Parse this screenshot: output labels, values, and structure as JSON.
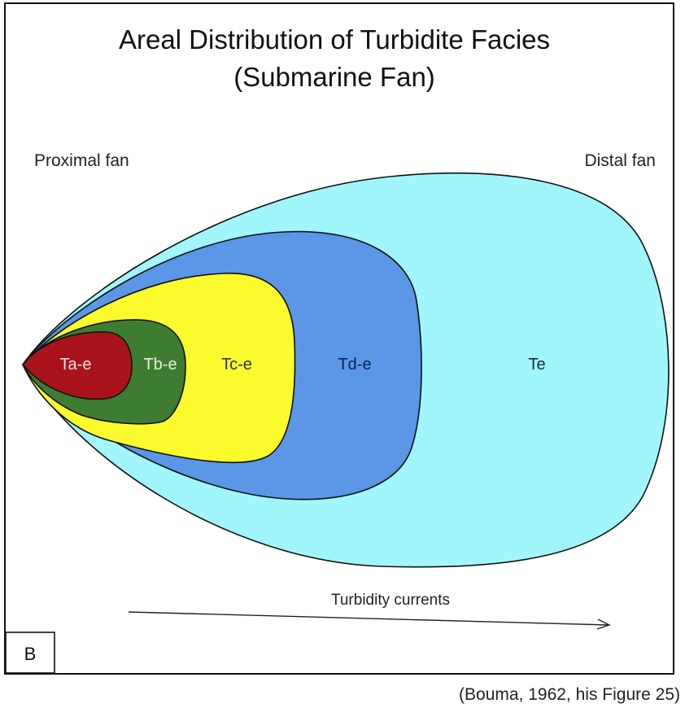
{
  "title": {
    "line1": "Areal Distribution of Turbidite Facies",
    "line2": "(Submarine Fan)"
  },
  "labels": {
    "proximal": "Proximal fan",
    "distal": "Distal fan",
    "arrow": "Turbidity currents",
    "panel": "B"
  },
  "facies": [
    {
      "name": "Te",
      "color": "#A0F6FA",
      "text_color": "#1a2a40"
    },
    {
      "name": "Td-e",
      "color": "#5B97E6",
      "text_color": "#0d1f4a"
    },
    {
      "name": "Tc-e",
      "color": "#FAFA2C",
      "text_color": "#333333"
    },
    {
      "name": "Tb-e",
      "color": "#3E7C32",
      "text_color": "#e8f0e4"
    },
    {
      "name": "Ta-e",
      "color": "#A8141A",
      "text_color": "#f3e6e6"
    }
  ],
  "citation": "(Bouma, 1962, his Figure 25)"
}
